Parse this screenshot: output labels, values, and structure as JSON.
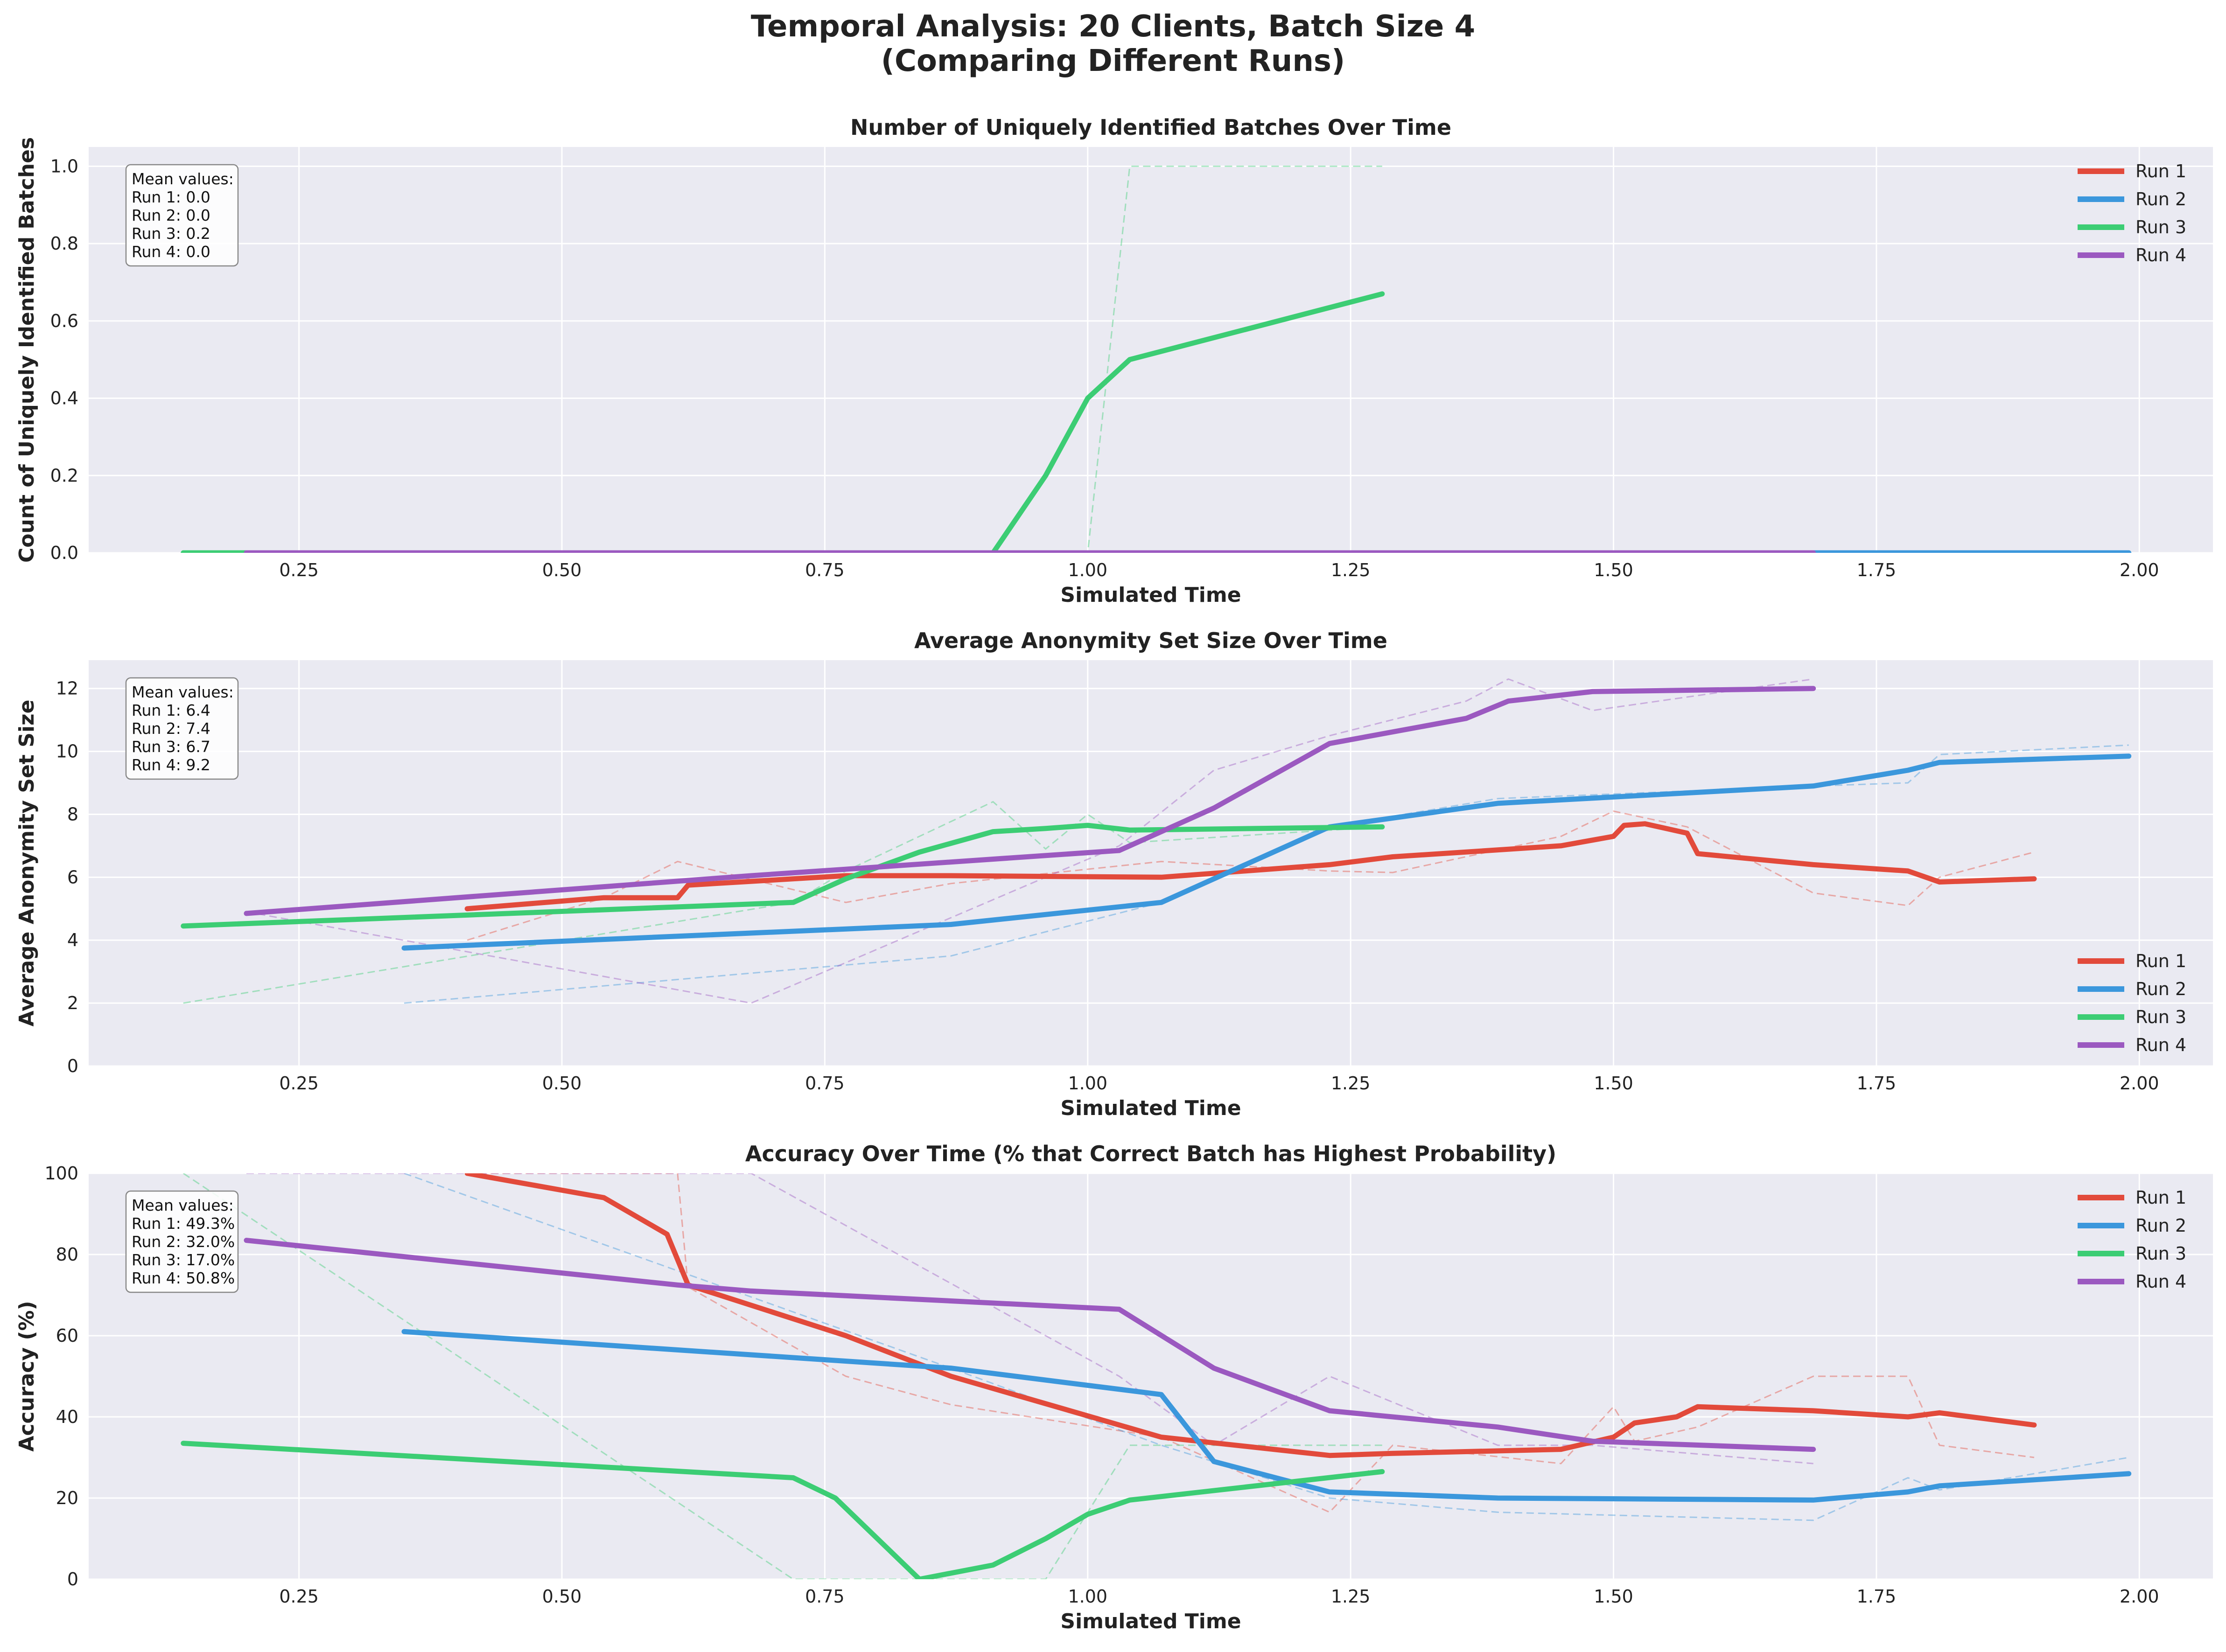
{
  "figure": {
    "title_line1": "Temporal Analysis: 20 Clients, Batch Size 4",
    "title_line2": "(Comparing Different Runs)",
    "background": "#ffffff",
    "plot_background": "#eaeaf2"
  },
  "series_colors": {
    "Run 1": "#e24a3b",
    "Run 2": "#3b97dc",
    "Run 3": "#3ccd74",
    "Run 4": "#9b59c0"
  },
  "chart_data": [
    {
      "type": "line",
      "title": "Number of Uniquely Identified Batches Over Time",
      "xlabel": "Simulated Time",
      "ylabel": "Count of Uniquely Identified Batches",
      "xlim": [
        0.05,
        2.07
      ],
      "ylim": [
        0,
        1.05
      ],
      "xticks": [
        0.25,
        0.5,
        0.75,
        1.0,
        1.25,
        1.5,
        1.75,
        2.0
      ],
      "xtick_labels": [
        "0.25",
        "0.50",
        "0.75",
        "1.00",
        "1.25",
        "1.50",
        "1.75",
        "2.00"
      ],
      "yticks": [
        0,
        0.2,
        0.4,
        0.6,
        0.8,
        1.0
      ],
      "ytick_labels": [
        "0.0",
        "0.2",
        "0.4",
        "0.6",
        "0.8",
        "1.0"
      ],
      "grid": true,
      "legend_position": "upper right",
      "mean_box": {
        "heading": "Mean values:",
        "lines": [
          "Run 1: 0.0",
          "Run 2: 0.0",
          "Run 3: 0.2",
          "Run 4: 0.0"
        ]
      },
      "series": [
        {
          "name": "Run 1",
          "smoothed": {
            "x": [
              0.41,
              0.61,
              0.87,
              1.23,
              1.5,
              1.58,
              1.9
            ],
            "y": [
              0,
              0,
              0,
              0,
              0,
              0,
              0
            ]
          },
          "raw": {
            "x": [
              0.41,
              0.61,
              0.87,
              1.23,
              1.5,
              1.58,
              1.9
            ],
            "y": [
              0,
              0,
              0,
              0,
              0,
              0,
              0
            ]
          }
        },
        {
          "name": "Run 2",
          "smoothed": {
            "x": [
              0.35,
              0.87,
              1.07,
              1.39,
              1.69,
              1.81,
              1.99
            ],
            "y": [
              0,
              0,
              0,
              0,
              0,
              0,
              0
            ]
          },
          "raw": {
            "x": [
              0.35,
              0.87,
              1.07,
              1.39,
              1.69,
              1.81,
              1.99
            ],
            "y": [
              0,
              0,
              0,
              0,
              0,
              0,
              0
            ]
          }
        },
        {
          "name": "Run 3",
          "smoothed": {
            "x": [
              0.14,
              0.72,
              0.84,
              0.91,
              0.96,
              1.0,
              1.04,
              1.28
            ],
            "y": [
              0,
              0,
              0,
              0,
              0.2,
              0.4,
              0.5,
              0.67
            ]
          },
          "raw": {
            "x": [
              0.14,
              0.72,
              0.84,
              0.91,
              0.96,
              1.0,
              1.04,
              1.28
            ],
            "y": [
              0,
              0,
              0,
              0,
              0,
              0,
              1.0,
              1.0
            ]
          }
        },
        {
          "name": "Run 4",
          "smoothed": {
            "x": [
              0.2,
              0.68,
              1.03,
              1.12,
              1.23,
              1.39,
              1.69
            ],
            "y": [
              0,
              0,
              0,
              0,
              0,
              0,
              0
            ]
          },
          "raw": {
            "x": [
              0.2,
              0.68,
              1.03,
              1.12,
              1.23,
              1.39,
              1.69
            ],
            "y": [
              0,
              0,
              0,
              0,
              0,
              0,
              0
            ]
          }
        }
      ]
    },
    {
      "type": "line",
      "title": "Average Anonymity Set Size Over Time",
      "xlabel": "Simulated Time",
      "ylabel": "Average Anonymity Set Size",
      "xlim": [
        0.05,
        2.07
      ],
      "ylim": [
        0,
        12.9
      ],
      "xticks": [
        0.25,
        0.5,
        0.75,
        1.0,
        1.25,
        1.5,
        1.75,
        2.0
      ],
      "xtick_labels": [
        "0.25",
        "0.50",
        "0.75",
        "1.00",
        "1.25",
        "1.50",
        "1.75",
        "2.00"
      ],
      "yticks": [
        0,
        2,
        4,
        6,
        8,
        10,
        12
      ],
      "ytick_labels": [
        "0",
        "2",
        "4",
        "6",
        "8",
        "10",
        "12"
      ],
      "grid": true,
      "legend_position": "lower right",
      "mean_box": {
        "heading": "Mean values:",
        "lines": [
          "Run 1: 6.4",
          "Run 2: 7.4",
          "Run 3: 6.7",
          "Run 4: 9.2"
        ]
      },
      "series": [
        {
          "name": "Run 1",
          "smoothed": {
            "x": [
              0.41,
              0.54,
              0.61,
              0.62,
              0.77,
              0.87,
              1.07,
              1.23,
              1.29,
              1.45,
              1.5,
              1.51,
              1.53,
              1.57,
              1.58,
              1.69,
              1.78,
              1.81,
              1.9
            ],
            "y": [
              5.0,
              5.35,
              5.35,
              5.75,
              6.05,
              6.05,
              6.0,
              6.4,
              6.65,
              7.0,
              7.3,
              7.65,
              7.7,
              7.4,
              6.75,
              6.4,
              6.2,
              5.85,
              5.95
            ]
          },
          "raw": {
            "x": [
              0.41,
              0.54,
              0.61,
              0.77,
              0.87,
              1.07,
              1.23,
              1.29,
              1.45,
              1.5,
              1.57,
              1.69,
              1.78,
              1.81,
              1.9
            ],
            "y": [
              4.0,
              5.35,
              6.5,
              5.2,
              5.8,
              6.5,
              6.2,
              6.15,
              7.3,
              8.1,
              7.6,
              5.5,
              5.1,
              6.0,
              6.8
            ]
          }
        },
        {
          "name": "Run 2",
          "smoothed": {
            "x": [
              0.35,
              0.87,
              1.07,
              1.23,
              1.39,
              1.69,
              1.78,
              1.81,
              1.99
            ],
            "y": [
              3.75,
              4.5,
              5.2,
              7.6,
              8.35,
              8.9,
              9.4,
              9.65,
              9.85
            ]
          },
          "raw": {
            "x": [
              0.35,
              0.87,
              1.07,
              1.23,
              1.39,
              1.69,
              1.78,
              1.81,
              1.99
            ],
            "y": [
              2.0,
              3.5,
              5.2,
              7.6,
              8.5,
              8.9,
              9.0,
              9.9,
              10.2
            ]
          }
        },
        {
          "name": "Run 3",
          "smoothed": {
            "x": [
              0.14,
              0.72,
              0.77,
              0.84,
              0.91,
              0.96,
              1.0,
              1.04,
              1.28
            ],
            "y": [
              4.45,
              5.2,
              5.95,
              6.8,
              7.45,
              7.55,
              7.65,
              7.5,
              7.6
            ]
          },
          "raw": {
            "x": [
              0.14,
              0.72,
              0.77,
              0.84,
              0.91,
              0.96,
              1.0,
              1.04,
              1.28
            ],
            "y": [
              2.0,
              5.2,
              6.2,
              7.3,
              8.4,
              6.9,
              8.0,
              7.1,
              7.6
            ]
          }
        },
        {
          "name": "Run 4",
          "smoothed": {
            "x": [
              0.2,
              0.68,
              1.03,
              1.12,
              1.23,
              1.36,
              1.4,
              1.48,
              1.69
            ],
            "y": [
              4.85,
              6.05,
              6.85,
              8.2,
              10.25,
              11.05,
              11.6,
              11.9,
              12.0
            ]
          },
          "raw": {
            "x": [
              0.2,
              0.68,
              1.03,
              1.12,
              1.23,
              1.36,
              1.4,
              1.48,
              1.69
            ],
            "y": [
              4.9,
              2.0,
              7.0,
              9.4,
              10.5,
              11.6,
              12.3,
              11.3,
              12.3
            ]
          }
        }
      ]
    },
    {
      "type": "line",
      "title": "Accuracy Over Time (% that Correct Batch has Highest Probability)",
      "xlabel": "Simulated Time",
      "ylabel": "Accuracy (%)",
      "xlim": [
        0.05,
        2.07
      ],
      "ylim": [
        0,
        100
      ],
      "xticks": [
        0.25,
        0.5,
        0.75,
        1.0,
        1.25,
        1.5,
        1.75,
        2.0
      ],
      "xtick_labels": [
        "0.25",
        "0.50",
        "0.75",
        "1.00",
        "1.25",
        "1.50",
        "1.75",
        "2.00"
      ],
      "yticks": [
        0,
        20,
        40,
        60,
        80,
        100
      ],
      "ytick_labels": [
        "0",
        "20",
        "40",
        "60",
        "80",
        "100"
      ],
      "grid": true,
      "legend_position": "upper right",
      "mean_box": {
        "heading": "Mean values:",
        "lines": [
          "Run 1: 49.3%",
          "Run 2: 32.0%",
          "Run 3: 17.0%",
          "Run 4: 50.8%"
        ]
      },
      "series": [
        {
          "name": "Run 1",
          "smoothed": {
            "x": [
              0.41,
              0.54,
              0.6,
              0.62,
              0.77,
              0.87,
              1.07,
              1.23,
              1.29,
              1.45,
              1.5,
              1.52,
              1.56,
              1.58,
              1.69,
              1.78,
              1.81,
              1.9
            ],
            "y": [
              100,
              94,
              85,
              72.5,
              60,
              50,
              35,
              30.5,
              31,
              32,
              35,
              38.5,
              40,
              42.5,
              41.5,
              40,
              41,
              38
            ]
          },
          "raw": {
            "x": [
              0.41,
              0.54,
              0.61,
              0.62,
              0.77,
              0.87,
              1.07,
              1.23,
              1.29,
              1.45,
              1.5,
              1.52,
              1.58,
              1.69,
              1.78,
              1.81,
              1.9
            ],
            "y": [
              100,
              100,
              100,
              72,
              50,
              43,
              35,
              16.5,
              33,
              28.5,
              42.5,
              34,
              37.5,
              50,
              50,
              33,
              30
            ]
          }
        },
        {
          "name": "Run 2",
          "smoothed": {
            "x": [
              0.35,
              0.87,
              1.07,
              1.12,
              1.23,
              1.39,
              1.69,
              1.78,
              1.81,
              1.99
            ],
            "y": [
              61,
              52,
              45.5,
              29,
              21.5,
              20,
              19.5,
              21.5,
              23,
              26
            ]
          },
          "raw": {
            "x": [
              0.35,
              0.87,
              1.07,
              1.23,
              1.39,
              1.69,
              1.78,
              1.81,
              1.99
            ],
            "y": [
              100,
              52,
              33,
              20,
              16.5,
              14.5,
              25,
              22,
              30
            ]
          }
        },
        {
          "name": "Run 3",
          "smoothed": {
            "x": [
              0.14,
              0.72,
              0.76,
              0.84,
              0.91,
              0.96,
              1.0,
              1.04,
              1.28
            ],
            "y": [
              33.5,
              25,
              20,
              0,
              3.5,
              10,
              16,
              19.5,
              26.5
            ]
          },
          "raw": {
            "x": [
              0.14,
              0.72,
              0.77,
              0.84,
              0.91,
              0.96,
              1.04,
              1.28
            ],
            "y": [
              100,
              0,
              0,
              0,
              0,
              0,
              33,
              33
            ]
          }
        },
        {
          "name": "Run 4",
          "smoothed": {
            "x": [
              0.2,
              0.61,
              0.68,
              1.03,
              1.12,
              1.23,
              1.39,
              1.48,
              1.69
            ],
            "y": [
              83.5,
              72.5,
              71,
              66.5,
              52,
              41.5,
              37.5,
              34,
              32
            ]
          },
          "raw": {
            "x": [
              0.2,
              0.68,
              1.03,
              1.12,
              1.23,
              1.39,
              1.48,
              1.69
            ],
            "y": [
              100,
              100,
              50,
              33,
              50,
              33,
              33,
              28.5
            ]
          }
        }
      ]
    }
  ]
}
